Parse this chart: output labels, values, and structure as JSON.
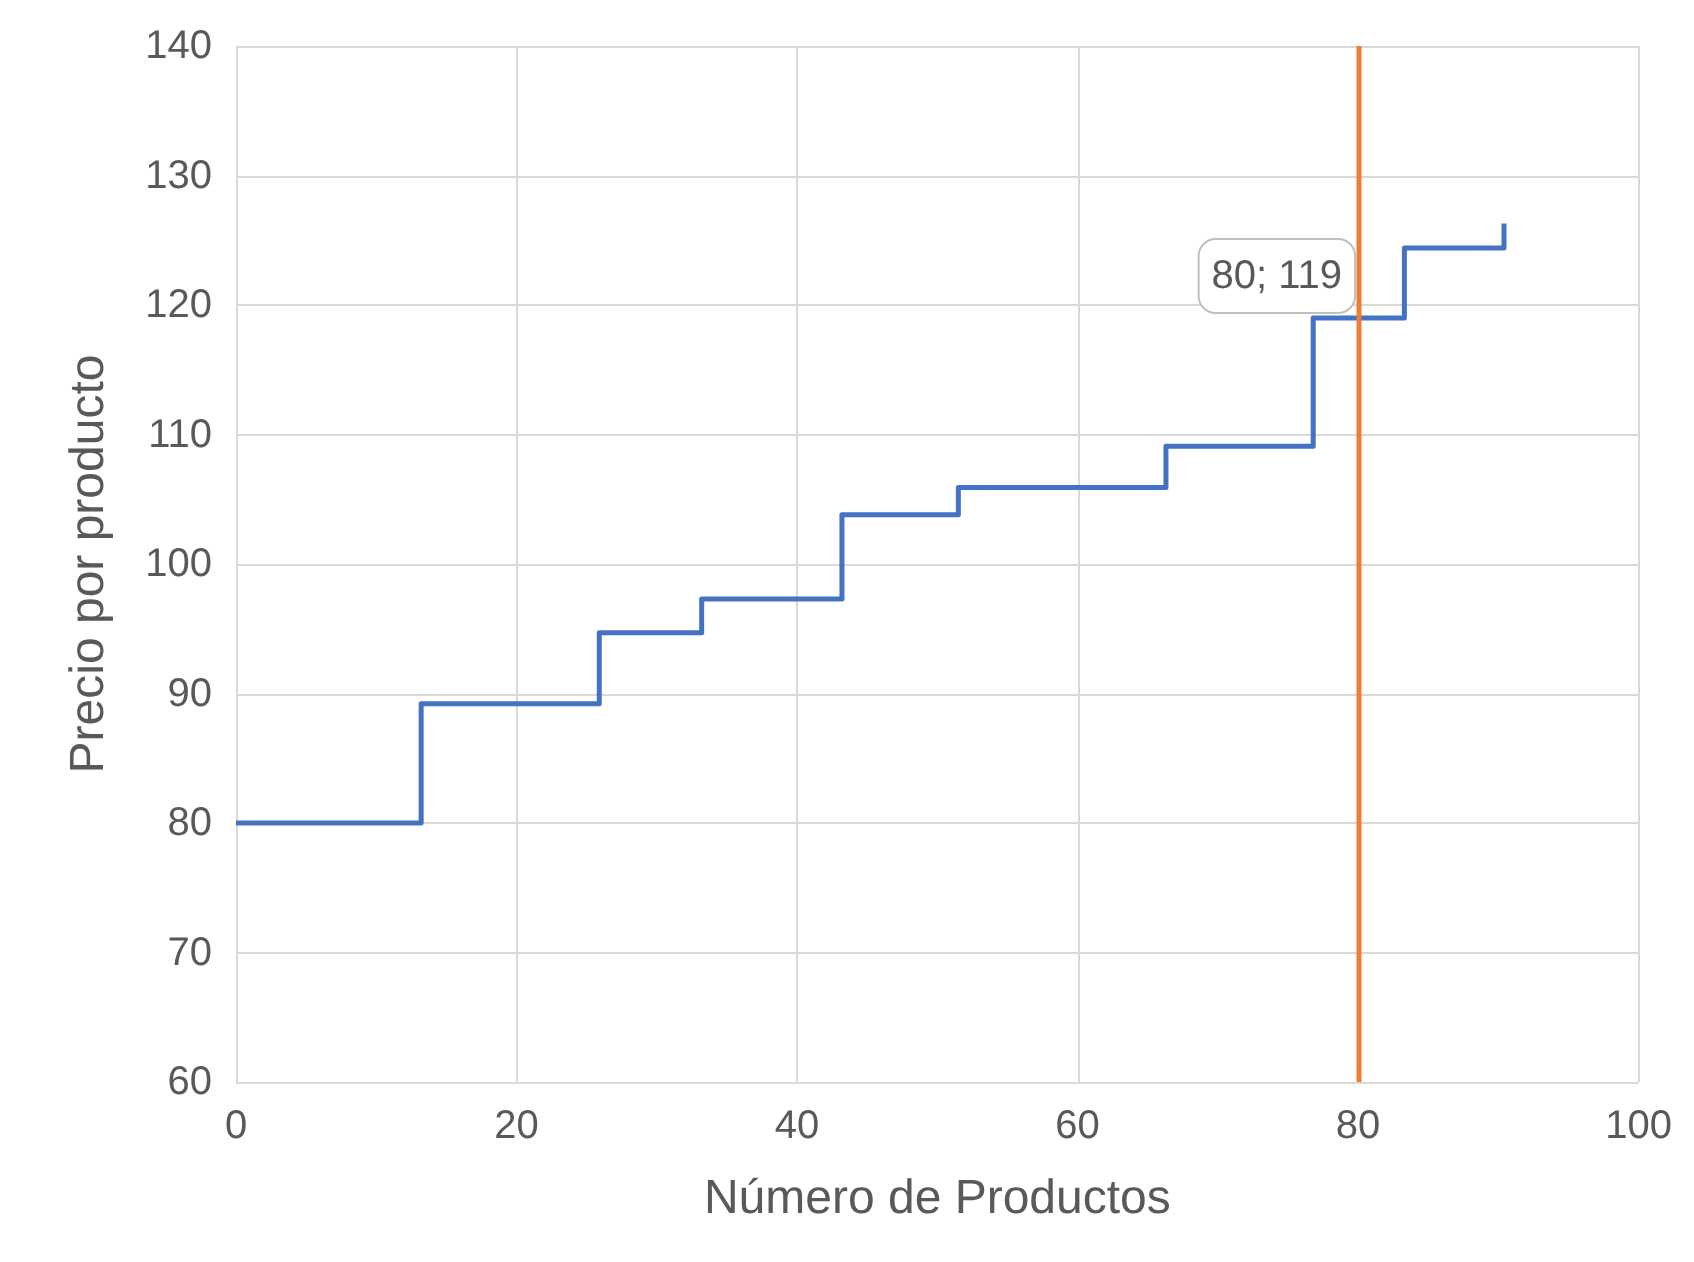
{
  "chart_data": {
    "type": "step",
    "xlabel": "Número de Productos",
    "ylabel": "Precio por producto",
    "x": [
      0,
      13.2,
      25.9,
      33.2,
      43.2,
      51.5,
      66.3,
      76.8,
      83.3,
      90.4
    ],
    "series": [
      {
        "color": "#4472c4",
        "values": [
          80,
          89.2,
          94.7,
          97.3,
          103.8,
          105.9,
          109.1,
          119,
          124.4,
          126.3
        ]
      }
    ],
    "xlim": [
      0,
      100
    ],
    "xticks": [
      0,
      20,
      40,
      60,
      80,
      100
    ],
    "ylim": [
      60,
      140
    ],
    "yticks": [
      60,
      70,
      80,
      90,
      100,
      110,
      120,
      130,
      140
    ],
    "grid": true,
    "ref_lines": [
      {
        "axis": "x",
        "value": 80,
        "color": "#ed7d31"
      }
    ],
    "annotations": [
      {
        "text": "80; 119",
        "x": 80,
        "y": 119
      }
    ]
  }
}
